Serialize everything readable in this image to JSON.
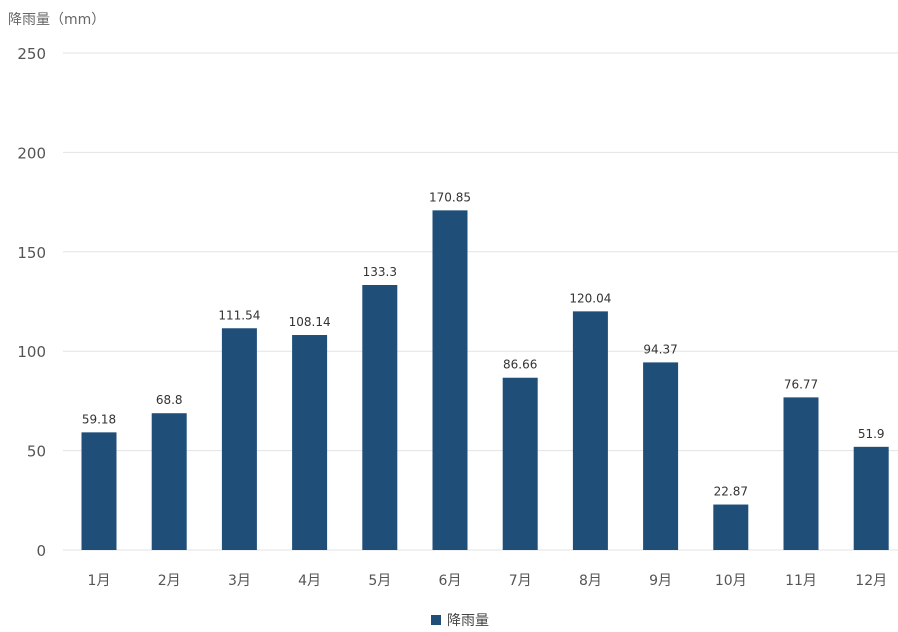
{
  "chart_data": {
    "type": "bar",
    "ylabel": "降雨量（mm）",
    "categories": [
      "1月",
      "2月",
      "3月",
      "4月",
      "5月",
      "6月",
      "7月",
      "8月",
      "9月",
      "10月",
      "11月",
      "12月"
    ],
    "series": [
      {
        "name": "降雨量",
        "values": [
          59.18,
          68.8,
          111.54,
          108.14,
          133.3,
          170.85,
          86.66,
          120.04,
          94.37,
          22.87,
          76.77,
          51.9
        ],
        "data_labels": [
          "59.18",
          "68.8",
          "111.54",
          "108.14",
          "133.3",
          "170.85",
          "86.66",
          "120.04",
          "94.37",
          "22.87",
          "76.77",
          "51.9"
        ],
        "color": "#1f4e79"
      }
    ],
    "ylim": [
      0,
      250
    ],
    "yticks": [
      0,
      50,
      100,
      150,
      200,
      250
    ],
    "ytick_labels": [
      "0",
      "50",
      "100",
      "150",
      "200",
      "250"
    ],
    "grid": "horizontal",
    "legend_position": "bottom-center"
  }
}
